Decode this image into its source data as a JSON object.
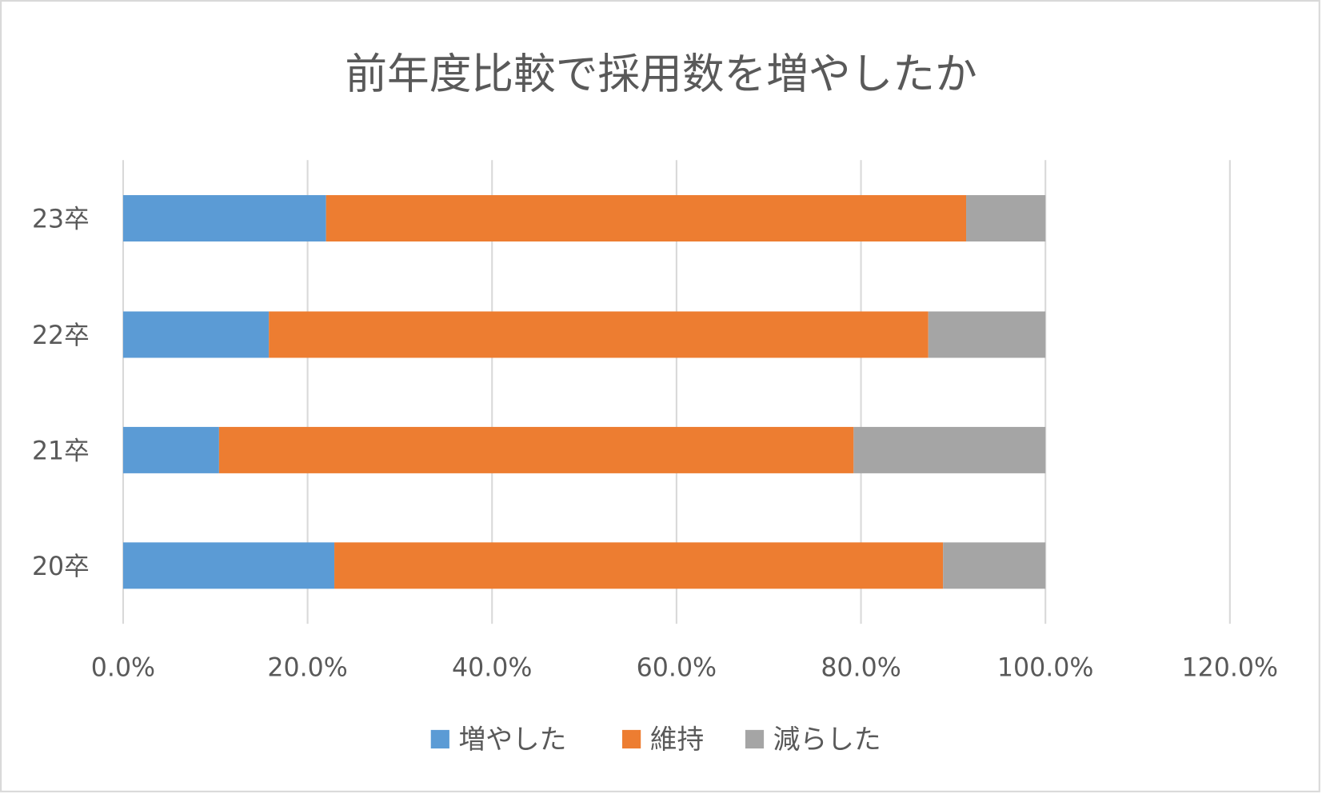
{
  "chart_data": {
    "type": "bar",
    "orientation": "horizontal",
    "stacked": "percent",
    "title": "前年度比較で採用数を増やしたか",
    "categories": [
      "20卒",
      "21卒",
      "22卒",
      "23卒"
    ],
    "series": [
      {
        "name": "増やした",
        "color": "#5B9BD5",
        "values": [
          22.9,
          10.4,
          15.8,
          22.0
        ]
      },
      {
        "name": "維持",
        "color": "#ED7D31",
        "values": [
          66.0,
          68.8,
          71.5,
          69.4
        ]
      },
      {
        "name": "減らした",
        "color": "#A5A5A5",
        "values": [
          11.1,
          20.8,
          12.7,
          8.6
        ]
      }
    ],
    "xlim": [
      0,
      120
    ],
    "xticks": [
      "0.0%",
      "20.0%",
      "40.0%",
      "60.0%",
      "80.0%",
      "100.0%",
      "120.0%"
    ],
    "grid": true,
    "legend": "bottom"
  }
}
